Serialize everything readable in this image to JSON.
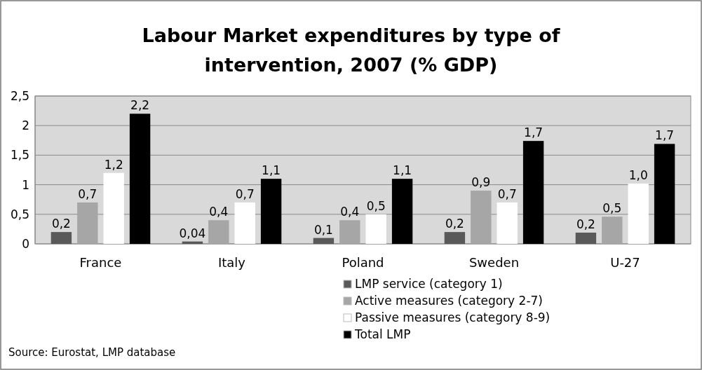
{
  "chart_data": {
    "type": "bar",
    "title": "Labour Market expenditures by type of intervention, 2007 (% GDP)",
    "categories": [
      "France",
      "Italy",
      "Poland",
      "Sweden",
      "U-27"
    ],
    "series": [
      {
        "name": "LMP service (category 1)",
        "color": "#595959",
        "values": [
          0.2,
          0.04,
          0.1,
          0.2,
          0.19
        ],
        "value_labels": [
          "0,2",
          "0,04",
          "0,1",
          "0,2",
          "0,2"
        ]
      },
      {
        "name": "Active measures (category 2-7)",
        "color": "#a6a6a6",
        "values": [
          0.7,
          0.4,
          0.4,
          0.9,
          0.46
        ],
        "value_labels": [
          "0,7",
          "0,4",
          "0,4",
          "0,9",
          "0,5"
        ]
      },
      {
        "name": "Passive measures (category 8-9)",
        "color": "#ffffff",
        "values": [
          1.2,
          0.7,
          0.5,
          0.7,
          1.02
        ],
        "value_labels": [
          "1,2",
          "0,7",
          "0,5",
          "0,7",
          "1,0"
        ]
      },
      {
        "name": "Total LMP",
        "color": "#000000",
        "values": [
          2.2,
          1.1,
          1.1,
          1.74,
          1.69
        ],
        "value_labels": [
          "2,2",
          "1,1",
          "1,1",
          "1,7",
          "1,7"
        ]
      }
    ],
    "ylim": [
      0,
      2.5
    ],
    "yticks": [
      0,
      {
        "value": 0.5,
        "label": "0,5"
      },
      1,
      {
        "value": 1.5,
        "label": "1,5"
      },
      2,
      {
        "value": 2.5,
        "label": "2,5"
      }
    ],
    "grid": "y",
    "legend": "bottom right",
    "annotations": [
      "Source: Eurostat, LMP database"
    ]
  }
}
